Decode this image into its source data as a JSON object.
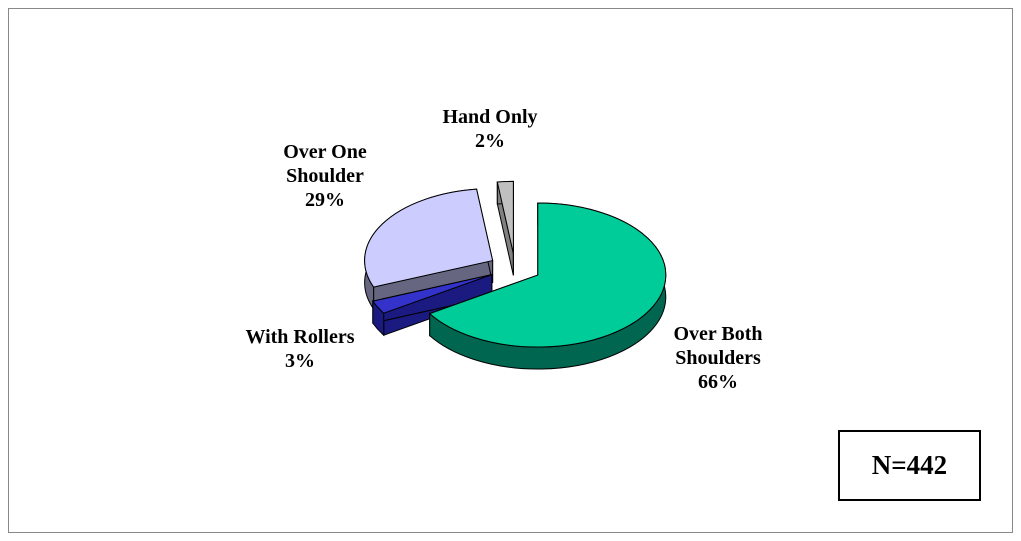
{
  "chart_data": {
    "type": "pie",
    "categories": [
      "Over Both Shoulders",
      "With Rollers",
      "Over One Shoulder",
      "Hand Only"
    ],
    "values": [
      66,
      3,
      29,
      2
    ],
    "value_labels": [
      "66%",
      "3%",
      "29%",
      "2%"
    ],
    "colors": [
      "#00cc99",
      "#3333cc",
      "#ccccff",
      "#c0c0c0"
    ],
    "side_colors": [
      "#006650",
      "#1a1a80",
      "#666680",
      "#808080"
    ],
    "annotation": "N=442"
  }
}
